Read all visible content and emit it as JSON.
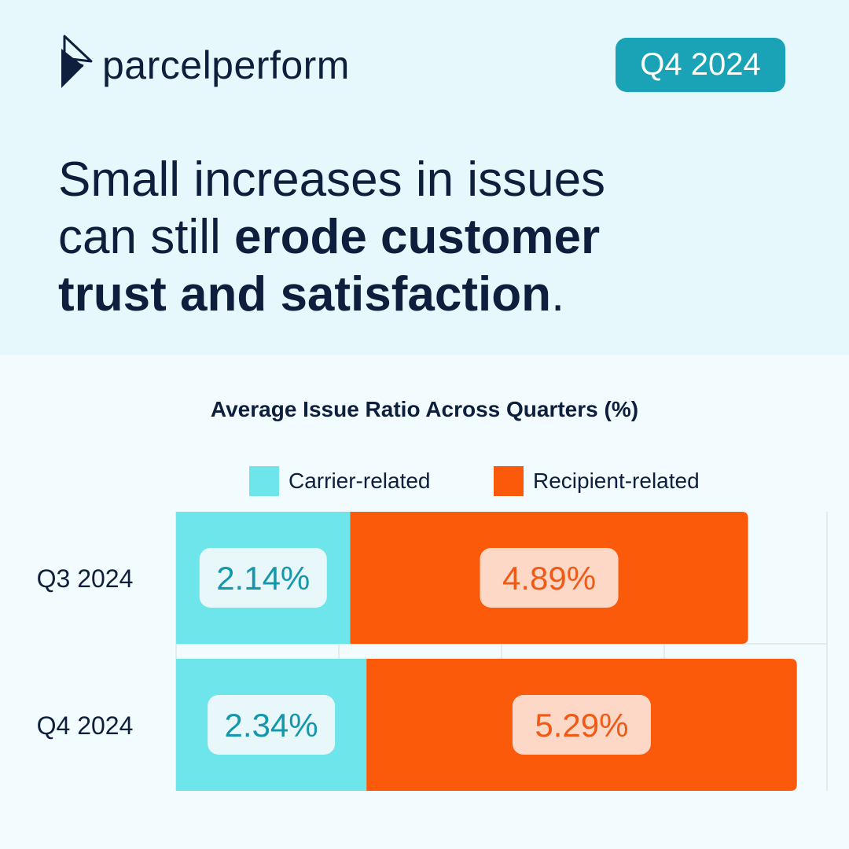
{
  "brand": {
    "name": "parcelperform"
  },
  "badge": "Q4 2024",
  "headline": {
    "line1": "Small increases in issues",
    "line2_regular": "can still ",
    "line2_bold": "erode customer",
    "line3_bold": "trust and satisfaction",
    "line3_end": "."
  },
  "colors": {
    "carrier": "#6ee5ea",
    "recipient": "#fb5a0b",
    "carrier_label_bg": "#e8f8fa",
    "carrier_label_text": "#1597ab",
    "recipient_label_bg": "#fdd8c6",
    "recipient_label_text": "#f05a16",
    "navy": "#0d1f3c",
    "badge": "#1aa3b6"
  },
  "chart_data": {
    "type": "bar",
    "orientation": "horizontal",
    "stacked": true,
    "title": "Average Issue Ratio Across Quarters (%)",
    "categories": [
      "Q3 2024",
      "Q4 2024"
    ],
    "series": [
      {
        "name": "Carrier-related",
        "values": [
          2.14,
          2.34
        ],
        "labels": [
          "2.14%",
          "2.34%"
        ]
      },
      {
        "name": "Recipient-related",
        "values": [
          4.89,
          5.29
        ],
        "labels": [
          "4.89%",
          "5.29%"
        ]
      }
    ],
    "xlim": [
      0,
      8
    ],
    "grid": true,
    "legend_position": "top-right"
  }
}
